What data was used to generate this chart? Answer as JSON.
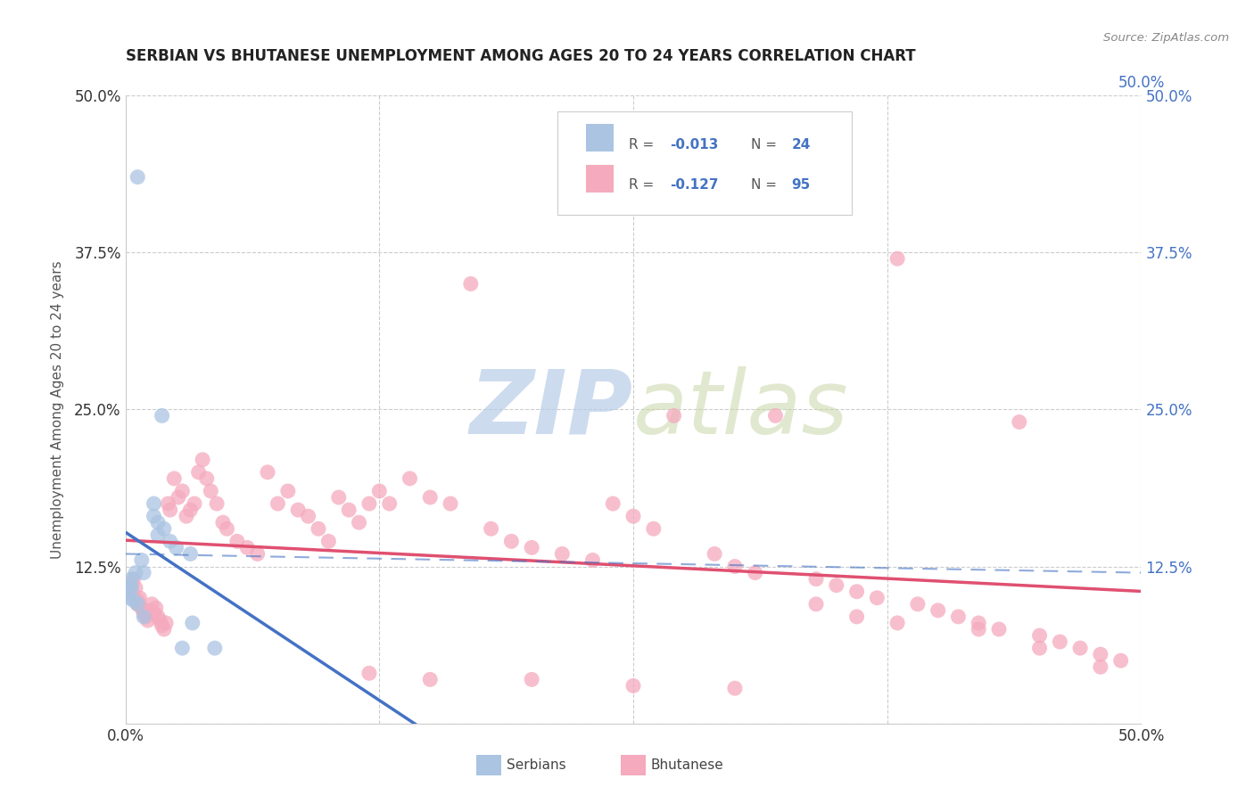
{
  "title": "SERBIAN VS BHUTANESE UNEMPLOYMENT AMONG AGES 20 TO 24 YEARS CORRELATION CHART",
  "source": "Source: ZipAtlas.com",
  "ylabel": "Unemployment Among Ages 20 to 24 years",
  "xlim": [
    0.0,
    0.5
  ],
  "ylim": [
    0.0,
    0.5
  ],
  "serbian_R": "-0.013",
  "serbian_N": "24",
  "bhutanese_R": "-0.127",
  "bhutanese_N": "95",
  "serbian_color": "#aac4e2",
  "bhutanese_color": "#f5aabe",
  "trend_serbian_color": "#4472c4",
  "trend_bhutanese_color": "#e05070",
  "trend_serbian_dash_color": "#8fafd8",
  "background_color": "#ffffff",
  "watermark_color": "#c8d8f0",
  "legend_text_color": "#4472c4",
  "label_color": "#333333",
  "grid_color": "#cccccc",
  "serbian_x": [
    0.006,
    0.018,
    0.008,
    0.003,
    0.005,
    0.002,
    0.001,
    0.003,
    0.002,
    0.004,
    0.006,
    0.014,
    0.014,
    0.016,
    0.019,
    0.016,
    0.009,
    0.022,
    0.025,
    0.032,
    0.028,
    0.033,
    0.009,
    0.044
  ],
  "serbian_y": [
    0.435,
    0.245,
    0.13,
    0.115,
    0.12,
    0.11,
    0.105,
    0.108,
    0.1,
    0.098,
    0.095,
    0.175,
    0.165,
    0.16,
    0.155,
    0.15,
    0.085,
    0.145,
    0.14,
    0.135,
    0.06,
    0.08,
    0.12,
    0.06
  ],
  "bhutanese_x": [
    0.002,
    0.003,
    0.004,
    0.005,
    0.006,
    0.006,
    0.007,
    0.008,
    0.009,
    0.01,
    0.011,
    0.012,
    0.013,
    0.014,
    0.015,
    0.016,
    0.017,
    0.018,
    0.019,
    0.02,
    0.021,
    0.022,
    0.024,
    0.026,
    0.028,
    0.03,
    0.032,
    0.034,
    0.036,
    0.038,
    0.04,
    0.042,
    0.045,
    0.048,
    0.05,
    0.055,
    0.06,
    0.065,
    0.07,
    0.075,
    0.08,
    0.085,
    0.09,
    0.095,
    0.1,
    0.105,
    0.11,
    0.115,
    0.12,
    0.125,
    0.13,
    0.14,
    0.15,
    0.16,
    0.17,
    0.18,
    0.19,
    0.2,
    0.215,
    0.23,
    0.24,
    0.25,
    0.26,
    0.27,
    0.29,
    0.3,
    0.31,
    0.32,
    0.34,
    0.35,
    0.36,
    0.37,
    0.38,
    0.39,
    0.4,
    0.41,
    0.42,
    0.43,
    0.44,
    0.45,
    0.46,
    0.47,
    0.48,
    0.49,
    0.34,
    0.36,
    0.38,
    0.42,
    0.45,
    0.48,
    0.12,
    0.15,
    0.2,
    0.25,
    0.3
  ],
  "bhutanese_y": [
    0.105,
    0.11,
    0.115,
    0.108,
    0.098,
    0.095,
    0.1,
    0.092,
    0.088,
    0.085,
    0.082,
    0.09,
    0.095,
    0.088,
    0.092,
    0.085,
    0.082,
    0.078,
    0.075,
    0.08,
    0.175,
    0.17,
    0.195,
    0.18,
    0.185,
    0.165,
    0.17,
    0.175,
    0.2,
    0.21,
    0.195,
    0.185,
    0.175,
    0.16,
    0.155,
    0.145,
    0.14,
    0.135,
    0.2,
    0.175,
    0.185,
    0.17,
    0.165,
    0.155,
    0.145,
    0.18,
    0.17,
    0.16,
    0.175,
    0.185,
    0.175,
    0.195,
    0.18,
    0.175,
    0.35,
    0.155,
    0.145,
    0.14,
    0.135,
    0.13,
    0.175,
    0.165,
    0.155,
    0.245,
    0.135,
    0.125,
    0.12,
    0.245,
    0.115,
    0.11,
    0.105,
    0.1,
    0.37,
    0.095,
    0.09,
    0.085,
    0.08,
    0.075,
    0.24,
    0.07,
    0.065,
    0.06,
    0.055,
    0.05,
    0.095,
    0.085,
    0.08,
    0.075,
    0.06,
    0.045,
    0.04,
    0.035,
    0.035,
    0.03,
    0.028
  ]
}
